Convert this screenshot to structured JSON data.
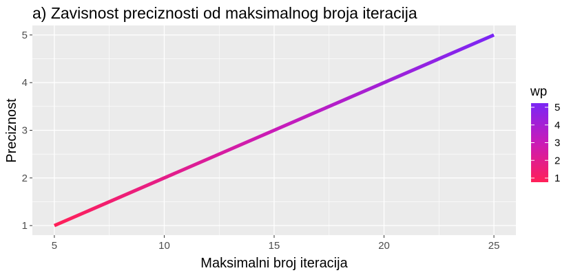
{
  "chart_data": {
    "type": "line",
    "title": "a) Zavisnost preciznosti od maksimalnog broja iteracija",
    "xlabel": "Maksimalni broj iteracija",
    "ylabel": "Preciznost",
    "xlim": [
      4,
      26
    ],
    "ylim": [
      0.8,
      5.2
    ],
    "x_ticks": [
      5,
      10,
      15,
      20,
      25
    ],
    "y_ticks": [
      1,
      2,
      3,
      4,
      5
    ],
    "grid": true,
    "legend_position": "right",
    "series": [
      {
        "x": [
          5,
          10,
          15,
          20,
          25
        ],
        "y": [
          1,
          2,
          3,
          4,
          5
        ],
        "wp": [
          1,
          2,
          3,
          4,
          5
        ]
      }
    ],
    "legend": {
      "title": "wp",
      "scale": [
        1,
        5
      ],
      "labels": [
        1,
        2,
        3,
        4,
        5
      ],
      "colors": {
        "low": "#FF2058",
        "mid": "#C91BB8",
        "high": "#7A26F5"
      }
    },
    "colors": {
      "panel": "#EBEBEB",
      "grid": "#FFFFFF",
      "text": "#000000",
      "tick_text": "#4D4D4D"
    }
  }
}
